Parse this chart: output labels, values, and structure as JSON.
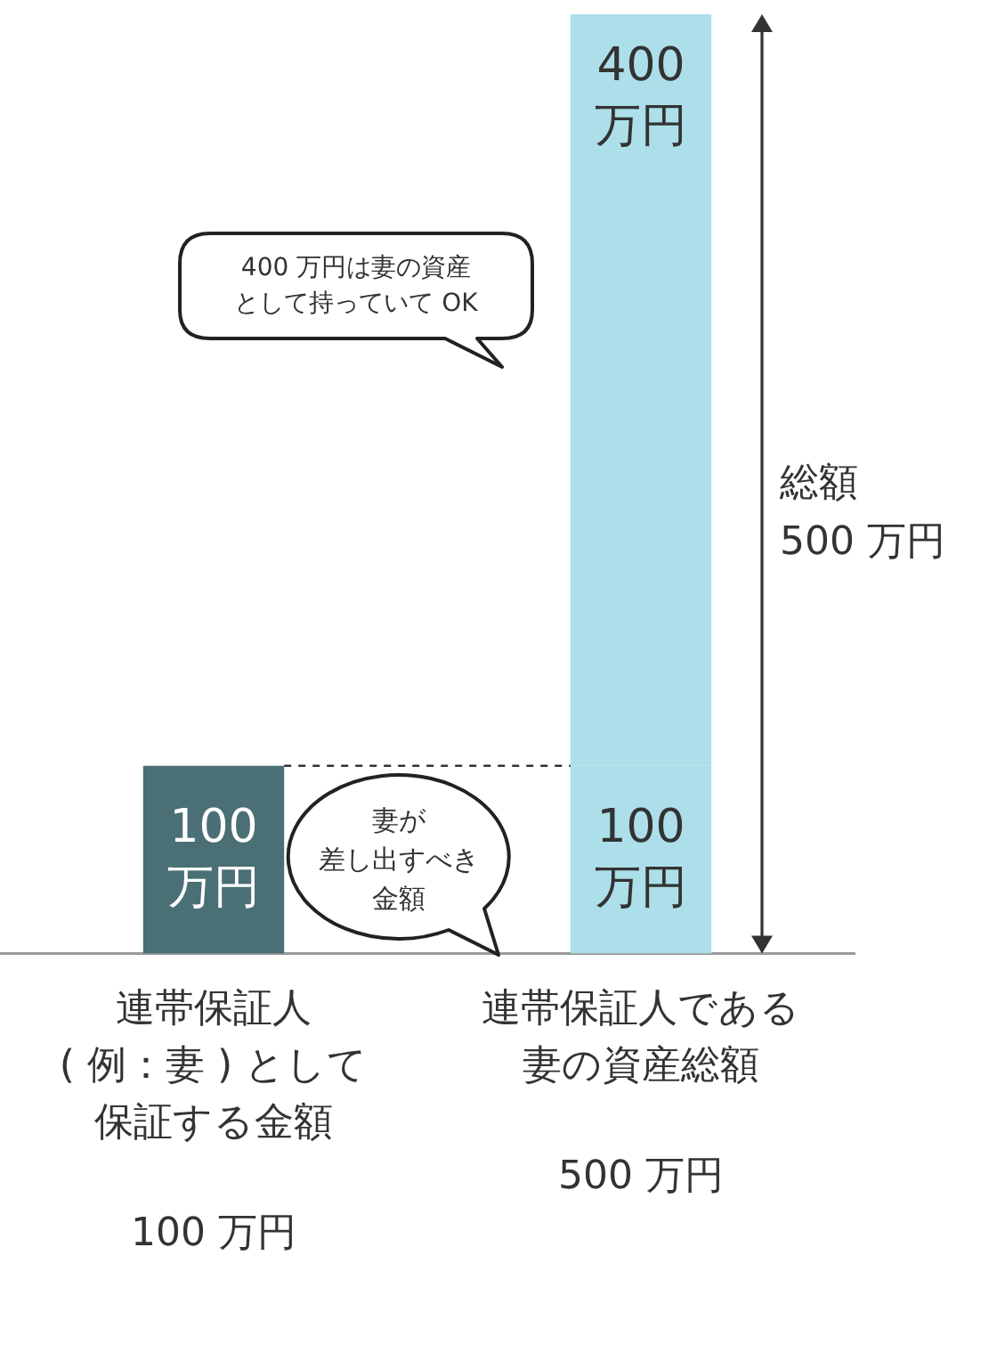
{
  "chart_data": {
    "type": "bar",
    "stacked": true,
    "categories": [
      "連帯保証人( 例：妻 ) として保証する金額",
      "連帯保証人である妻の資産総額"
    ],
    "series": [
      {
        "colors": [
          "#4a6f74",
          "#acdfe9"
        ],
        "values": [
          100,
          100
        ],
        "value_labels": [
          "100 万円",
          "100 万円"
        ]
      },
      {
        "color": "#acdfe9",
        "values": [
          null,
          400
        ],
        "value_labels": [
          null,
          "400 万円"
        ]
      }
    ],
    "ref_lines": [
      {
        "axis": "y",
        "value": 100,
        "line_style": "dashed"
      }
    ],
    "annotations": [
      "100 万円",
      "500 万円",
      "400 万円は妻の資産として持っていて OK",
      "妻が差し出すべき金額",
      "総額500 万円"
    ],
    "grid": false,
    "legend": false,
    "tick_labels": "x"
  }
}
